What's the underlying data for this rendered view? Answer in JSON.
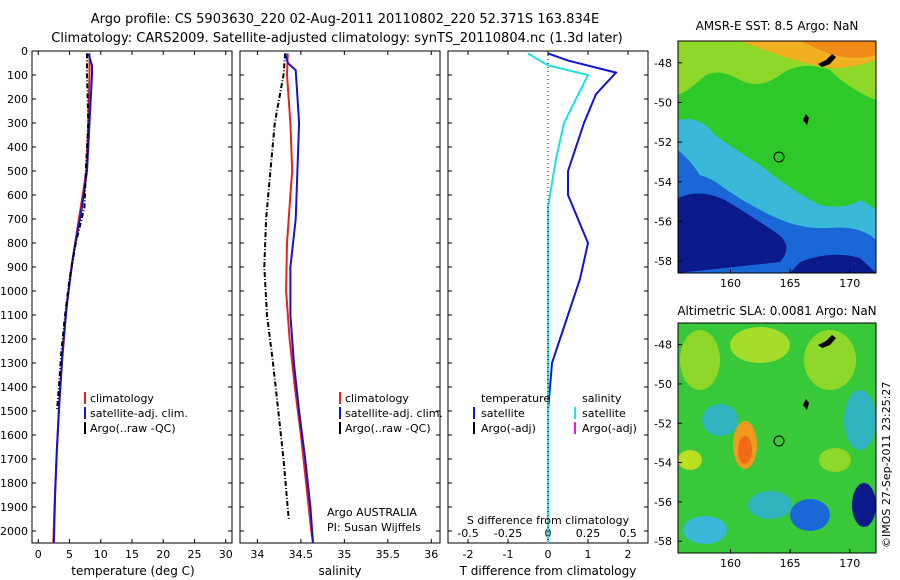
{
  "header": {
    "line1": "Argo profile: CS 5903630_220 02-Aug-2011 20110802_220 52.371S 163.834E",
    "line2": "Climatology: CARS2009. Satellite-adjusted climatology: synTS_20110804.nc (1.3d later)"
  },
  "colors": {
    "climatology": "#e8201e",
    "satellite": "#1414d0",
    "argo": "#000000",
    "sal_satellite": "#22e0e0",
    "sal_argo": "#e020e0"
  },
  "chart_data": [
    {
      "type": "line",
      "panel": "temperature",
      "xlabel": "temperature (deg C)",
      "xlim": [
        -1,
        31
      ],
      "xticks": [
        "0",
        "5",
        "10",
        "15",
        "20",
        "25",
        "30"
      ],
      "ylim": [
        0,
        2050
      ],
      "yticks": [
        "0",
        "100",
        "200",
        "300",
        "400",
        "500",
        "600",
        "700",
        "800",
        "900",
        "1000",
        "1100",
        "1200",
        "1300",
        "1400",
        "1500",
        "1600",
        "1700",
        "1800",
        "1900",
        "2000"
      ],
      "legend": [
        "climatology",
        "satellite-adj. clim.",
        "Argo(..raw -QC)"
      ],
      "series": [
        {
          "name": "climatology",
          "color": "#e8201e",
          "points": [
            [
              8.2,
              10
            ],
            [
              8.2,
              100
            ],
            [
              8.0,
              300
            ],
            [
              7.7,
              500
            ],
            [
              6.5,
              700
            ],
            [
              5.3,
              900
            ],
            [
              4.4,
              1100
            ],
            [
              3.8,
              1300
            ],
            [
              3.3,
              1500
            ],
            [
              2.9,
              1700
            ],
            [
              2.6,
              1900
            ],
            [
              2.4,
              2050
            ]
          ]
        },
        {
          "name": "satellite-adj. clim.",
          "color": "#1414d0",
          "points": [
            [
              8.0,
              10
            ],
            [
              8.6,
              60
            ],
            [
              8.6,
              100
            ],
            [
              8.2,
              300
            ],
            [
              7.8,
              500
            ],
            [
              7.0,
              650
            ],
            [
              5.6,
              850
            ],
            [
              4.6,
              1050
            ],
            [
              3.9,
              1250
            ],
            [
              3.4,
              1450
            ],
            [
              3.0,
              1650
            ],
            [
              2.7,
              1850
            ],
            [
              2.5,
              2050
            ]
          ]
        },
        {
          "name": "Argo(..raw -QC)",
          "color": "#000000",
          "points": [
            [
              7.8,
              10
            ],
            [
              7.8,
              100
            ],
            [
              8.0,
              300
            ],
            [
              7.6,
              500
            ],
            [
              7.4,
              650
            ],
            [
              6.0,
              800
            ],
            [
              5.0,
              950
            ],
            [
              4.3,
              1100
            ],
            [
              3.7,
              1250
            ],
            [
              3.3,
              1400
            ],
            [
              3.0,
              1500
            ]
          ]
        }
      ]
    },
    {
      "type": "line",
      "panel": "salinity",
      "xlabel": "salinity",
      "xlim": [
        33.8,
        36.1
      ],
      "xticks": [
        "34",
        "34.5",
        "35",
        "35.5",
        "36"
      ],
      "ylim": [
        0,
        2050
      ],
      "legend": [
        "climatology",
        "satellite-adj. clim.",
        "Argo(..raw -QC)"
      ],
      "note_lines": [
        "Argo AUSTRALIA",
        "PI: Susan Wijffels"
      ],
      "series": [
        {
          "name": "climatology",
          "color": "#e8201e",
          "points": [
            [
              34.35,
              10
            ],
            [
              34.34,
              100
            ],
            [
              34.38,
              300
            ],
            [
              34.4,
              500
            ],
            [
              34.38,
              600
            ],
            [
              34.34,
              800
            ],
            [
              34.33,
              1000
            ],
            [
              34.37,
              1200
            ],
            [
              34.43,
              1400
            ],
            [
              34.5,
              1600
            ],
            [
              34.56,
              1800
            ],
            [
              34.62,
              2000
            ],
            [
              34.64,
              2050
            ]
          ]
        },
        {
          "name": "satellite-adj. clim.",
          "color": "#1414d0",
          "points": [
            [
              34.32,
              10
            ],
            [
              34.35,
              50
            ],
            [
              34.44,
              80
            ],
            [
              34.48,
              300
            ],
            [
              34.46,
              500
            ],
            [
              34.44,
              700
            ],
            [
              34.38,
              900
            ],
            [
              34.38,
              1100
            ],
            [
              34.42,
              1300
            ],
            [
              34.48,
              1500
            ],
            [
              34.55,
              1700
            ],
            [
              34.61,
              1900
            ],
            [
              34.64,
              2050
            ]
          ]
        },
        {
          "name": "Argo(..raw -QC)",
          "color": "#000000",
          "points": [
            [
              34.32,
              10
            ],
            [
              34.3,
              100
            ],
            [
              34.2,
              300
            ],
            [
              34.15,
              500
            ],
            [
              34.1,
              700
            ],
            [
              34.08,
              900
            ],
            [
              34.11,
              1100
            ],
            [
              34.18,
              1300
            ],
            [
              34.24,
              1500
            ],
            [
              34.3,
              1700
            ],
            [
              34.36,
              1950
            ]
          ]
        }
      ]
    },
    {
      "type": "line",
      "panel": "difference",
      "xlabel": "T difference from climatology",
      "xlabel_top": "S difference from climatology",
      "xlim": [
        -2.5,
        2.5
      ],
      "xticks": [
        "-2",
        "-1",
        "0",
        "1",
        "2"
      ],
      "xticks_top": [
        "-0.5",
        "-0.25",
        "0",
        "0.25",
        "0.5"
      ],
      "legend_titles": [
        "temperature",
        "salinity"
      ],
      "legend": [
        "satellite",
        "Argo(-adj)",
        "satellite",
        "Argo(-adj)"
      ],
      "series": [
        {
          "name": "temperature satellite",
          "color": "#1414d0",
          "points": [
            [
              0.0,
              10
            ],
            [
              0.5,
              40
            ],
            [
              1.7,
              90
            ],
            [
              1.2,
              180
            ],
            [
              0.9,
              300
            ],
            [
              0.5,
              500
            ],
            [
              0.5,
              600
            ],
            [
              1.0,
              800
            ],
            [
              0.8,
              950
            ],
            [
              0.4,
              1150
            ],
            [
              0.1,
              1300
            ],
            [
              0.0,
              1500
            ],
            [
              0.0,
              2050
            ]
          ]
        },
        {
          "name": "salinity satellite",
          "color": "#22e0e0",
          "points": [
            [
              -0.5,
              10
            ],
            [
              0.0,
              60
            ],
            [
              1.0,
              100
            ],
            [
              0.7,
              200
            ],
            [
              0.4,
              300
            ],
            [
              0.2,
              450
            ],
            [
              0.0,
              650
            ],
            [
              0.0,
              1000
            ],
            [
              0.0,
              2050
            ]
          ]
        }
      ]
    },
    {
      "type": "heatmap",
      "panel": "map_sst",
      "title": "AMSR-E SST: 8.5 Argo: NaN",
      "yticks": [
        "-48",
        "-50",
        "-52",
        "-54",
        "-56",
        "-58"
      ],
      "xticks": [
        "160",
        "165",
        "170"
      ],
      "marker": [
        163.8,
        -52.4
      ]
    },
    {
      "type": "heatmap",
      "panel": "map_sla",
      "title": "Altimetric SLA: 0.0081 Argo: NaN",
      "yticks": [
        "-48",
        "-50",
        "-52",
        "-54",
        "-56",
        "-58"
      ],
      "xticks": [
        "160",
        "165",
        "170"
      ],
      "marker": [
        163.8,
        -52.4
      ]
    }
  ],
  "footer": {
    "credit": "©IMOS 27-Sep-2011 23:25:27"
  }
}
